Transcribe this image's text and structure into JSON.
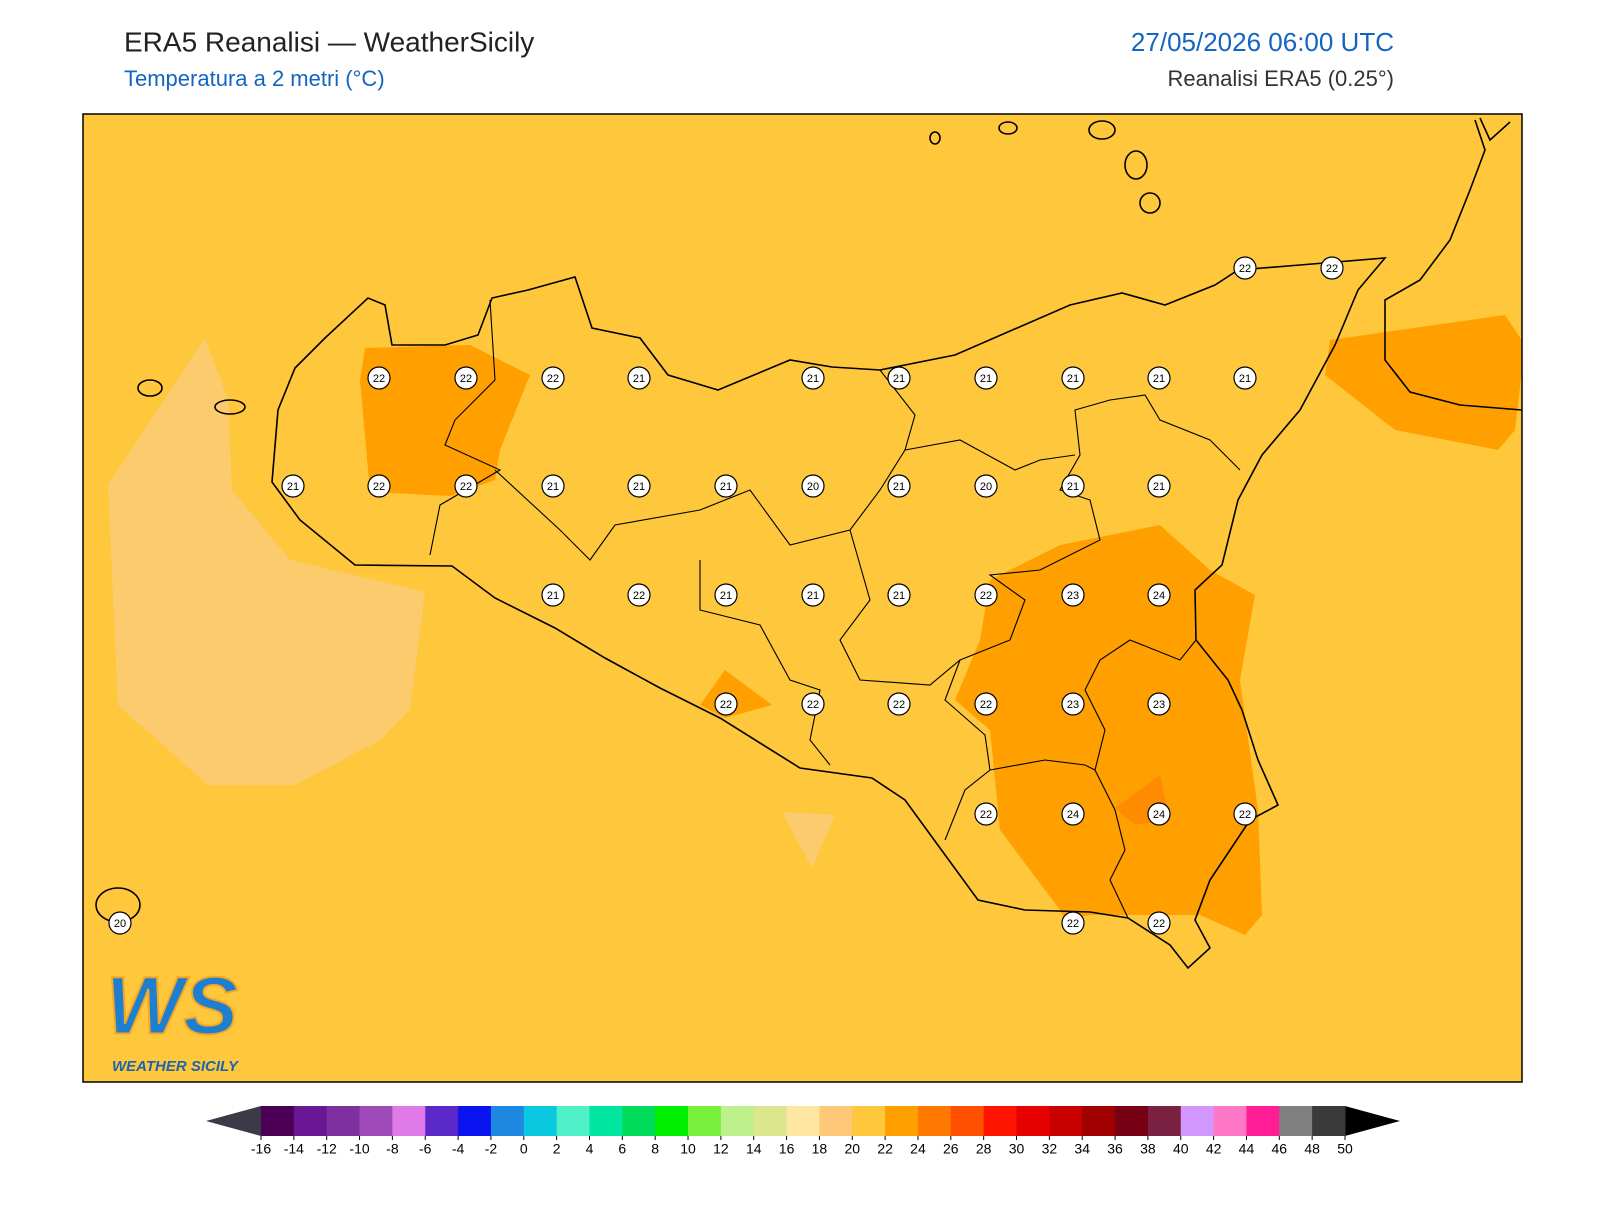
{
  "header": {
    "title": "ERA5 Reanalisi — WeatherSicily",
    "subtitle": "Temperatura a 2 metri (°C)",
    "date": "27/05/2026 06:00 UTC",
    "source": "Reanalisi ERA5 (0.25°)"
  },
  "stations": [
    22,
    22,
    22,
    22,
    22,
    21,
    21,
    21,
    21,
    21,
    21,
    21,
    21,
    22,
    22,
    21,
    21,
    21,
    20,
    21,
    20,
    21,
    21,
    21,
    22,
    21,
    21,
    21,
    22,
    23,
    24,
    22,
    22,
    22,
    22,
    23,
    23,
    22,
    24,
    24,
    22,
    20,
    22,
    22
  ],
  "logo": {
    "mark": "WS",
    "text": "WEATHER SICILY"
  },
  "colorbar": {
    "ticks": [
      -16,
      -14,
      -12,
      -10,
      -8,
      -6,
      -4,
      -2,
      0,
      2,
      4,
      6,
      8,
      10,
      12,
      14,
      16,
      18,
      20,
      22,
      24,
      26,
      28,
      30,
      32,
      34,
      36,
      38,
      40,
      42,
      44,
      46,
      48,
      50
    ],
    "colors": [
      "#4b0055",
      "#6a1796",
      "#7e30a0",
      "#9e4ab8",
      "#e07ae8",
      "#5a28c8",
      "#0a14f0",
      "#1e88e0",
      "#0ac8e0",
      "#50f0c8",
      "#00e6a0",
      "#00dc5a",
      "#00f000",
      "#78f03c",
      "#bef08c",
      "#dce68c",
      "#ffe6a0",
      "#ffc878",
      "#ffc83c",
      "#ffa000",
      "#ff7800",
      "#ff5000",
      "#ff1400",
      "#e60000",
      "#c80000",
      "#a00000",
      "#780014",
      "#7a2040",
      "#d296ff",
      "#ff78c8",
      "#ff1e96",
      "#808080",
      "#3a3a3a"
    ],
    "under_color": "#3a3a48",
    "over_color": "#000000"
  }
}
